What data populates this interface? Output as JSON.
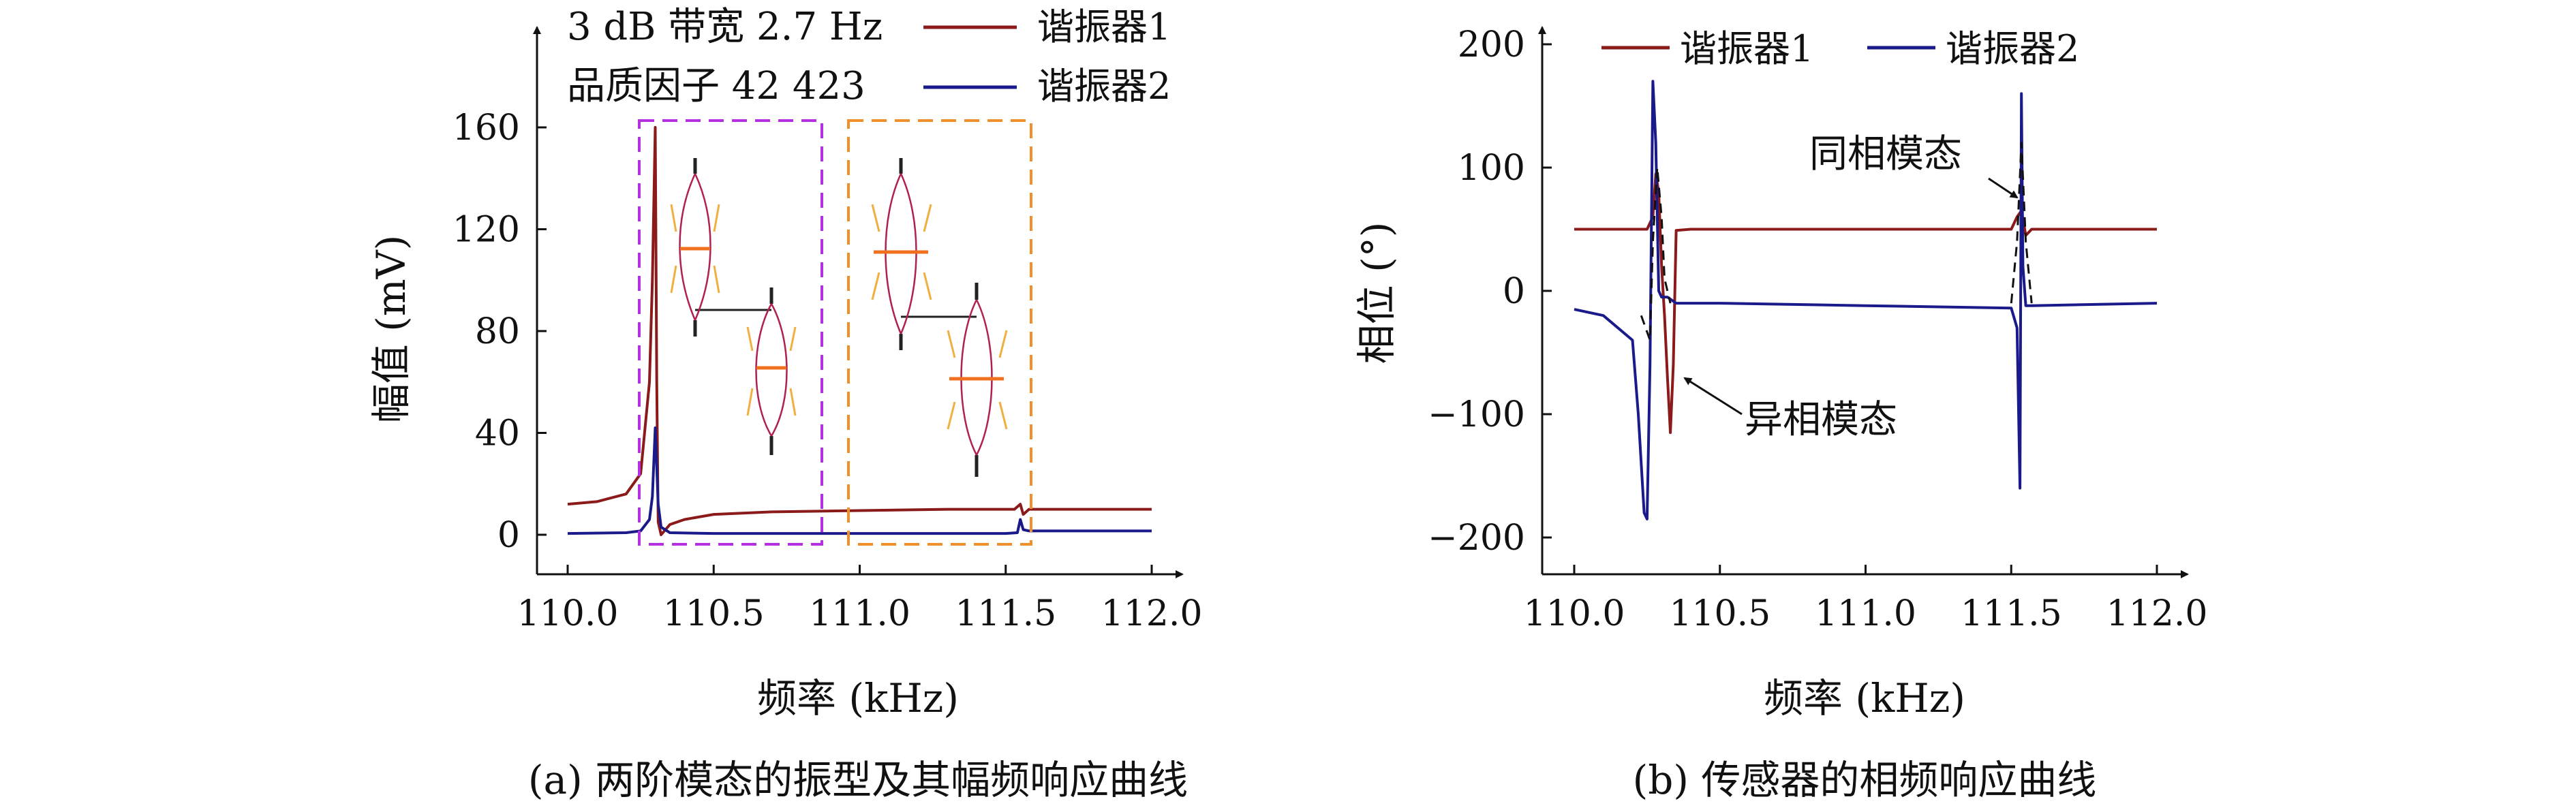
{
  "chart_data": [
    {
      "type": "line",
      "panel": "a",
      "caption": "(a) 两阶模态的振型及其幅频响应曲线",
      "xlabel": "频率 (kHz)",
      "ylabel": "幅值 (mV)",
      "xlim": [
        110.0,
        112.0
      ],
      "ylim": [
        -15,
        195
      ],
      "xticks": [
        110.0,
        110.5,
        111.0,
        111.5,
        112.0
      ],
      "xtick_labels": [
        "110.0",
        "110.5",
        "111.0",
        "111.5",
        "112.0"
      ],
      "yticks": [
        0,
        40,
        80,
        120,
        160
      ],
      "ytick_labels": [
        "0",
        "40",
        "80",
        "120",
        "160"
      ],
      "grid": false,
      "legend_position": "top-right",
      "annotations": [
        "3 dB 带宽 2.7 Hz",
        "品质因子 42 423"
      ],
      "series": [
        {
          "name": "谐振器1",
          "color": "#8b1a1a",
          "x": [
            110.0,
            110.1,
            110.2,
            110.25,
            110.28,
            110.29,
            110.3,
            110.305,
            110.31,
            110.32,
            110.35,
            110.4,
            110.5,
            110.7,
            111.0,
            111.3,
            111.53,
            111.55,
            111.56,
            111.58,
            111.7,
            112.0
          ],
          "y": [
            12,
            13,
            16,
            24,
            60,
            100,
            160,
            60,
            5,
            0,
            4,
            6,
            8,
            9,
            9.5,
            10,
            10,
            12,
            8,
            10,
            10,
            10
          ]
        },
        {
          "name": "谐振器2",
          "color": "#1a1a8b",
          "x": [
            110.0,
            110.2,
            110.25,
            110.28,
            110.29,
            110.3,
            110.31,
            110.32,
            110.35,
            110.5,
            111.0,
            111.5,
            111.54,
            111.55,
            111.56,
            111.58,
            112.0
          ],
          "y": [
            0.5,
            0.8,
            1.5,
            6,
            15,
            42,
            12,
            3,
            0.8,
            0.5,
            0.5,
            0.5,
            0.8,
            6,
            2,
            1.5,
            1.5
          ]
        }
      ]
    },
    {
      "type": "line",
      "panel": "b",
      "caption": "(b) 传感器的相频响应曲线",
      "xlabel": "频率 (kHz)",
      "ylabel": "相位 (°)",
      "xlim": [
        110.0,
        112.0
      ],
      "ylim": [
        -215,
        215
      ],
      "xticks": [
        110.0,
        110.5,
        111.0,
        111.5,
        112.0
      ],
      "xtick_labels": [
        "110.0",
        "110.5",
        "111.0",
        "111.5",
        "112.0"
      ],
      "yticks": [
        200,
        100,
        0,
        -100,
        -200
      ],
      "ytick_labels": [
        "200",
        "100",
        "0",
        "−100",
        "−200"
      ],
      "grid": false,
      "legend_position": "top",
      "annotations": [
        "同相模态",
        "异相模态"
      ],
      "series": [
        {
          "name": "谐振器1",
          "color": "#8b1a1a",
          "x": [
            110.0,
            110.25,
            110.27,
            110.28,
            110.29,
            110.3,
            110.31,
            110.32,
            110.33,
            110.34,
            110.35,
            110.4,
            110.6,
            111.0,
            111.5,
            111.52,
            111.535,
            111.55,
            111.57,
            112.0
          ],
          "y": [
            50,
            50,
            60,
            95,
            80,
            20,
            -20,
            -70,
            -115,
            -60,
            49,
            50,
            50,
            50,
            50,
            60,
            65,
            45,
            50,
            50
          ]
        },
        {
          "name": "谐振器2",
          "color": "#1a1a8b",
          "x": [
            110.0,
            110.1,
            110.2,
            110.22,
            110.24,
            110.25,
            110.26,
            110.27,
            110.28,
            110.29,
            110.3,
            110.32,
            110.35,
            110.5,
            111.0,
            111.5,
            111.52,
            111.53,
            111.535,
            111.54,
            111.55,
            111.57,
            112.0
          ],
          "y": [
            -15,
            -20,
            -40,
            -100,
            -180,
            -185,
            -60,
            170,
            120,
            0,
            -5,
            -5,
            -10,
            -10,
            -12,
            -14,
            -30,
            -160,
            160,
            20,
            -12,
            -12,
            -10
          ]
        },
        {
          "name": "",
          "color": "#111111",
          "dashed": true,
          "x": [
            110.23,
            110.26,
            110.27,
            110.285,
            110.3,
            110.31,
            110.33
          ],
          "y": [
            -20,
            -40,
            40,
            100,
            60,
            10,
            -10
          ]
        },
        {
          "name": "",
          "color": "#111111",
          "dashed": true,
          "x": [
            111.5,
            111.52,
            111.535,
            111.55,
            111.57
          ],
          "y": [
            -10,
            40,
            120,
            40,
            -10
          ]
        }
      ]
    }
  ]
}
